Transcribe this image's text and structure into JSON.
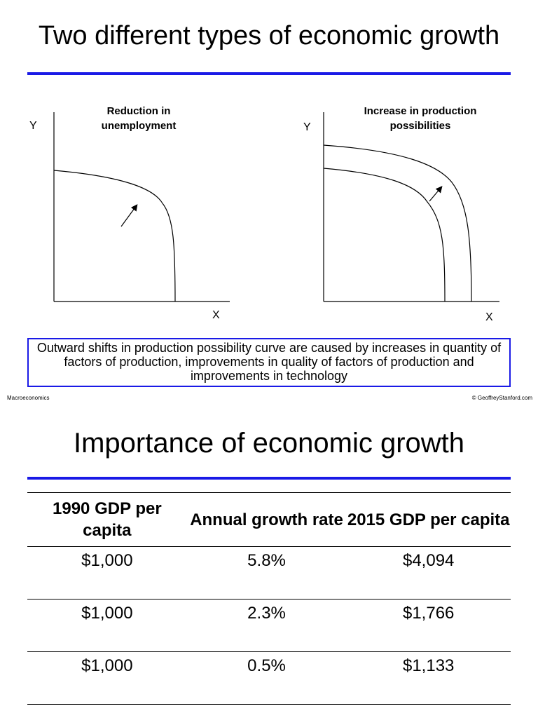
{
  "slide1": {
    "title": "Two different types of economic growth",
    "left_graph": {
      "title_line1": "Reduction in",
      "title_line2": "unemployment",
      "y_label": "Y",
      "x_label": "X"
    },
    "right_graph": {
      "title_line1": "Increase in production",
      "title_line2": "possibilities",
      "y_label": "Y",
      "x_label": "X"
    },
    "note": "Outward shifts in production possibility curve are caused by increases in quantity of factors of production, improvements in quality of factors of production and improvements in technology",
    "footer_left": "Macroeconomics",
    "footer_right": "© GeoffreyStanford.com",
    "accent_color": "#1a1ae6"
  },
  "slide2": {
    "title": "Importance of economic growth",
    "table": {
      "headers": [
        "1990 GDP per capita",
        "Annual growth rate",
        "2015 GDP per capita"
      ],
      "rows": [
        [
          "$1,000",
          "5.8%",
          "$4,094"
        ],
        [
          "$1,000",
          "2.3%",
          "$1,766"
        ],
        [
          "$1,000",
          "0.5%",
          "$1,133"
        ]
      ]
    }
  }
}
